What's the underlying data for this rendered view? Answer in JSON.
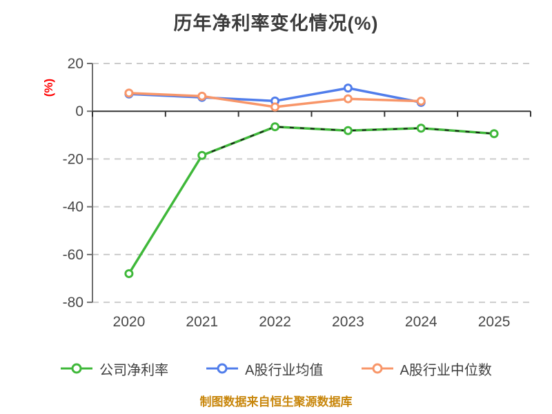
{
  "chart_data": {
    "type": "line",
    "title": "历年净利率变化情况(%)",
    "ylabel": "(%)",
    "footer": "制图数据来自恒生聚源数据库",
    "categories": [
      "2020",
      "2021",
      "2022",
      "2023",
      "2024",
      "2025"
    ],
    "series": [
      {
        "name": "公司净利率",
        "color": "#3fb83a",
        "values": [
          -68,
          -18.5,
          -6.5,
          -8.1,
          -7.1,
          -9.4
        ],
        "marker": "circle",
        "dark_dashed_overlay_from_index": 1
      },
      {
        "name": "A股行业均值",
        "color": "#507deb",
        "values": [
          7.2,
          5.8,
          4.3,
          9.7,
          3.7,
          null
        ],
        "marker": "circle"
      },
      {
        "name": "A股行业中位数",
        "color": "#f89669",
        "values": [
          7.6,
          6.3,
          1.8,
          5.2,
          4.2,
          null
        ],
        "marker": "circle"
      }
    ],
    "ylim": [
      -80,
      20
    ],
    "yticks": [
      20,
      0,
      -20,
      -40,
      -60,
      -80
    ],
    "grid": "dashed-horizontal",
    "legend_position": "bottom",
    "style": {
      "title_color": "#3b3b3b",
      "ylabel_color": "#ff0000",
      "footer_color": "#c8860b",
      "grid_color": "#cbcbcb",
      "axis_color": "#6e6e6e",
      "zero_axis_color": "#333333",
      "tick_label_color": "#474747",
      "marker_fill": "#ffffff",
      "overlay_dash_color": "#1b1b1b"
    }
  }
}
